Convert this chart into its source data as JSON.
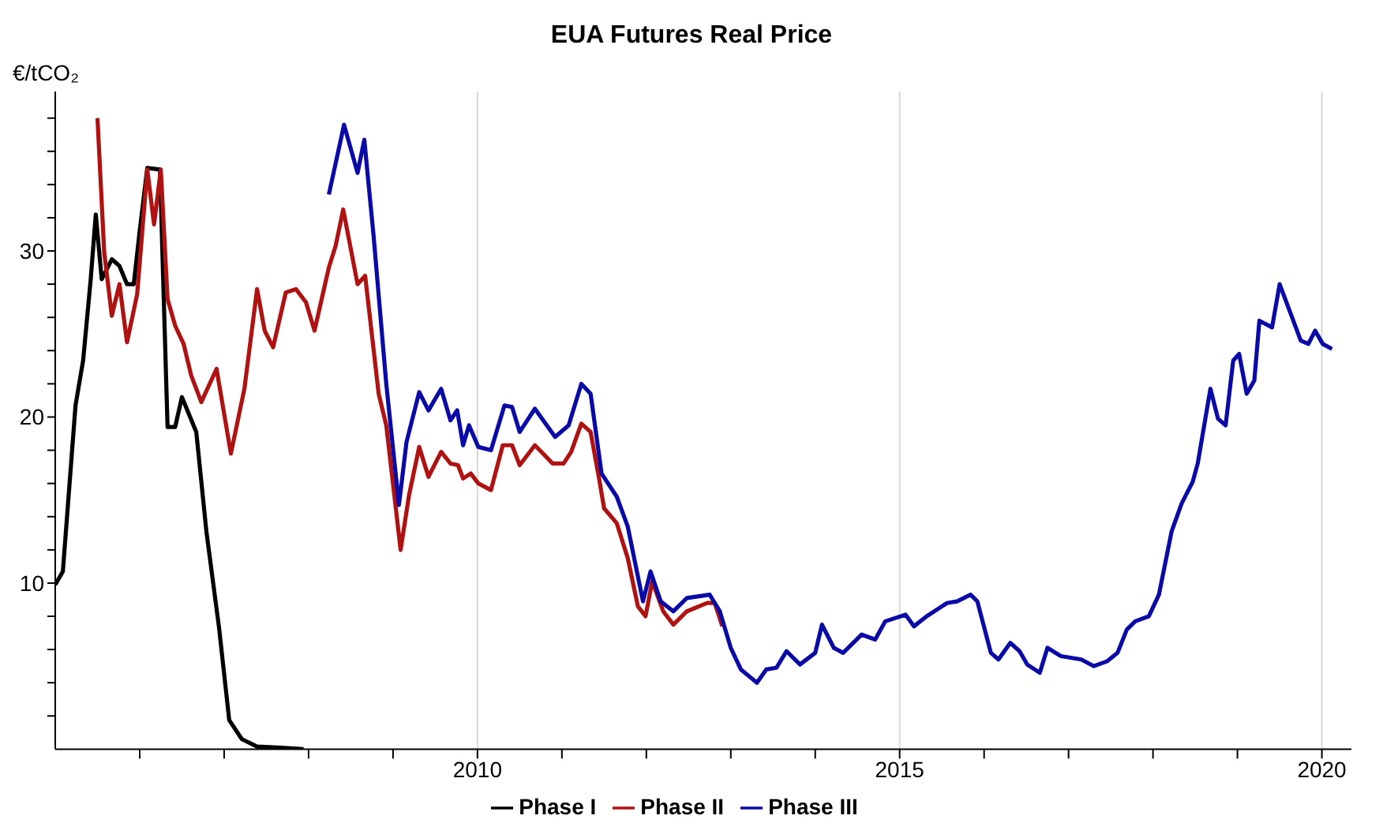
{
  "chart_data": {
    "type": "line",
    "title": "EUA Futures Real Price",
    "ylabel": "€/tCO₂",
    "xlim": [
      2005,
      2020.35
    ],
    "ylim": [
      0,
      39.6
    ],
    "xticks": [
      {
        "value": 2006,
        "label": null
      },
      {
        "value": 2007,
        "label": null
      },
      {
        "value": 2008,
        "label": null
      },
      {
        "value": 2009,
        "label": null
      },
      2010,
      {
        "value": 2011,
        "label": null
      },
      {
        "value": 2012,
        "label": null
      },
      {
        "value": 2013,
        "label": null
      },
      {
        "value": 2014,
        "label": null
      },
      2015,
      {
        "value": 2016,
        "label": null
      },
      {
        "value": 2017,
        "label": null
      },
      {
        "value": 2018,
        "label": null
      },
      {
        "value": 2019,
        "label": null
      },
      2020
    ],
    "yticks": [
      {
        "value": 2,
        "label": null
      },
      {
        "value": 4,
        "label": null
      },
      {
        "value": 6,
        "label": null
      },
      {
        "value": 8,
        "label": null
      },
      10,
      {
        "value": 12,
        "label": null
      },
      {
        "value": 14,
        "label": null
      },
      {
        "value": 16,
        "label": null
      },
      {
        "value": 18,
        "label": null
      },
      20,
      {
        "value": 22,
        "label": null
      },
      {
        "value": 24,
        "label": null
      },
      {
        "value": 26,
        "label": null
      },
      {
        "value": 28,
        "label": null
      },
      30,
      {
        "value": 32,
        "label": null
      },
      {
        "value": 34,
        "label": null
      },
      {
        "value": 36,
        "label": null
      },
      {
        "value": 38,
        "label": null
      }
    ],
    "grid": "x",
    "legend": "bottom",
    "marker": "none",
    "line_style": "solid",
    "series": [
      {
        "name": "Phase I",
        "color": "#000000",
        "x": [
          2005.0,
          2005.09,
          2005.24,
          2005.33,
          2005.42,
          2005.48,
          2005.55,
          2005.67,
          2005.76,
          2005.85,
          2005.93,
          2006.0,
          2006.09,
          2006.24,
          2006.33,
          2006.42,
          2006.5,
          2006.67,
          2006.79,
          2006.94,
          2007.06,
          2007.21,
          2007.39,
          2007.64,
          2007.94
        ],
        "values": [
          9.9,
          10.7,
          20.7,
          23.4,
          28.3,
          32.2,
          28.3,
          29.5,
          29.1,
          28.0,
          28.0,
          31.2,
          35.0,
          34.9,
          19.4,
          19.4,
          21.2,
          19.1,
          13.1,
          7.3,
          1.75,
          0.6,
          0.16,
          0.1,
          0.0
        ]
      },
      {
        "name": "Phase II",
        "color": "#b01212",
        "x": [
          2005.5,
          2005.58,
          2005.67,
          2005.76,
          2005.85,
          2005.97,
          2006.09,
          2006.17,
          2006.25,
          2006.33,
          2006.42,
          2006.52,
          2006.61,
          2006.73,
          2006.91,
          2007.08,
          2007.24,
          2007.39,
          2007.48,
          2007.58,
          2007.73,
          2007.85,
          2007.97,
          2008.07,
          2008.24,
          2008.32,
          2008.41,
          2008.58,
          2008.67,
          2008.83,
          2008.92,
          2009.09,
          2009.19,
          2009.31,
          2009.42,
          2009.57,
          2009.68,
          2009.77,
          2009.83,
          2009.92,
          2010.01,
          2010.16,
          2010.3,
          2010.41,
          2010.5,
          2010.68,
          2010.89,
          2011.02,
          2011.11,
          2011.23,
          2011.34,
          2011.44,
          2011.5,
          2011.65,
          2011.78,
          2011.9,
          2011.99,
          2012.07,
          2012.2,
          2012.32,
          2012.48,
          2012.72,
          2012.81,
          2012.9
        ],
        "values": [
          38.0,
          29.9,
          26.1,
          28.0,
          24.5,
          27.4,
          34.9,
          31.6,
          34.9,
          27.1,
          25.5,
          24.4,
          22.5,
          20.9,
          22.9,
          17.8,
          21.7,
          27.7,
          25.2,
          24.2,
          27.5,
          27.7,
          26.9,
          25.2,
          29.0,
          30.3,
          32.5,
          28.0,
          28.5,
          21.4,
          19.5,
          12.0,
          15.3,
          18.2,
          16.4,
          17.9,
          17.2,
          17.1,
          16.3,
          16.6,
          16.0,
          15.6,
          18.3,
          18.3,
          17.1,
          18.3,
          17.2,
          17.2,
          17.9,
          19.6,
          19.1,
          16.3,
          14.5,
          13.6,
          11.5,
          8.6,
          8.0,
          10.1,
          8.3,
          7.5,
          8.3,
          8.8,
          8.8,
          7.4
        ]
      },
      {
        "name": "Phase III",
        "color": "#0a0aa8",
        "x": [
          2008.24,
          2008.42,
          2008.58,
          2008.66,
          2008.77,
          2008.92,
          2009.07,
          2009.16,
          2009.31,
          2009.42,
          2009.57,
          2009.68,
          2009.76,
          2009.83,
          2009.9,
          2010.01,
          2010.16,
          2010.32,
          2010.41,
          2010.5,
          2010.68,
          2010.92,
          2011.08,
          2011.23,
          2011.34,
          2011.47,
          2011.65,
          2011.78,
          2011.96,
          2012.05,
          2012.17,
          2012.32,
          2012.48,
          2012.75,
          2012.87,
          2013.0,
          2013.12,
          2013.31,
          2013.42,
          2013.54,
          2013.66,
          2013.82,
          2014.0,
          2014.08,
          2014.22,
          2014.33,
          2014.55,
          2014.71,
          2014.83,
          2015.07,
          2015.17,
          2015.32,
          2015.44,
          2015.56,
          2015.68,
          2015.84,
          2015.92,
          2016.08,
          2016.17,
          2016.31,
          2016.42,
          2016.51,
          2016.66,
          2016.75,
          2016.91,
          2017.15,
          2017.3,
          2017.46,
          2017.58,
          2017.69,
          2017.79,
          2017.95,
          2018.07,
          2018.22,
          2018.34,
          2018.47,
          2018.53,
          2018.68,
          2018.77,
          2018.86,
          2018.95,
          2019.02,
          2019.11,
          2019.2,
          2019.26,
          2019.41,
          2019.5,
          2019.75,
          2019.84,
          2019.92,
          2020.01,
          2020.12
        ],
        "values": [
          33.4,
          37.6,
          34.7,
          36.7,
          30.9,
          22.0,
          14.7,
          18.5,
          21.5,
          20.4,
          21.7,
          19.8,
          20.4,
          18.3,
          19.5,
          18.2,
          18.0,
          20.7,
          20.6,
          19.1,
          20.5,
          18.8,
          19.5,
          22.0,
          21.4,
          16.6,
          15.2,
          13.4,
          8.9,
          10.7,
          8.9,
          8.3,
          9.1,
          9.3,
          8.3,
          6.1,
          4.8,
          4.0,
          4.8,
          4.9,
          5.9,
          5.1,
          5.8,
          7.5,
          6.1,
          5.8,
          6.9,
          6.6,
          7.7,
          8.1,
          7.4,
          8.0,
          8.4,
          8.8,
          8.9,
          9.3,
          8.9,
          5.8,
          5.4,
          6.4,
          5.9,
          5.1,
          4.6,
          6.1,
          5.6,
          5.4,
          5.0,
          5.3,
          5.8,
          7.2,
          7.7,
          8.0,
          9.3,
          13.1,
          14.8,
          16.1,
          17.2,
          21.7,
          19.9,
          19.5,
          23.4,
          23.8,
          21.4,
          22.2,
          25.8,
          25.4,
          28.0,
          24.6,
          24.4,
          25.2,
          24.4,
          24.1
        ]
      }
    ]
  }
}
